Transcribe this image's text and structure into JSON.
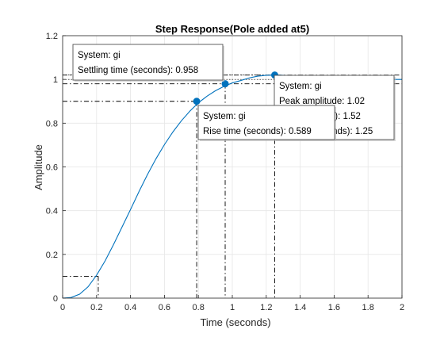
{
  "chart_data": {
    "type": "line",
    "title": "Step Response(Pole added at5)",
    "xlabel": "Time (seconds)",
    "ylabel": "Amplitude",
    "xlim": [
      0,
      2
    ],
    "ylim": [
      0,
      1.2
    ],
    "xticks": [
      "0",
      "0.2",
      "0.4",
      "0.6",
      "0.8",
      "1",
      "1.2",
      "1.4",
      "1.6",
      "1.8",
      "2"
    ],
    "yticks": [
      "0",
      "0.2",
      "0.4",
      "0.6",
      "0.8",
      "1",
      "1.2"
    ],
    "grid": true,
    "series": [
      {
        "color": "#0072BD",
        "x": [
          0,
          0.05,
          0.1,
          0.15,
          0.2,
          0.25,
          0.3,
          0.35,
          0.4,
          0.45,
          0.5,
          0.55,
          0.6,
          0.65,
          0.7,
          0.75,
          0.8,
          0.85,
          0.9,
          0.95,
          1.0,
          1.05,
          1.1,
          1.15,
          1.2,
          1.25,
          1.3,
          1.35,
          1.4,
          1.45,
          1.5,
          1.55,
          1.6,
          1.65,
          1.7,
          1.75,
          1.8,
          1.85,
          1.9,
          1.95,
          2.0
        ],
        "y": [
          0,
          0.003,
          0.018,
          0.052,
          0.105,
          0.17,
          0.245,
          0.325,
          0.405,
          0.487,
          0.565,
          0.637,
          0.702,
          0.76,
          0.811,
          0.855,
          0.893,
          0.923,
          0.948,
          0.968,
          0.984,
          0.995,
          1.007,
          1.015,
          1.019,
          1.02,
          1.019,
          1.016,
          1.013,
          1.01,
          1.008,
          1.006,
          1.004,
          1.003,
          1.002,
          1.001,
          1.001,
          1.0,
          1.0,
          1.0,
          1.0
        ]
      }
    ],
    "markers": [
      {
        "x": 0.79,
        "y": 0.9
      },
      {
        "x": 0.958,
        "y": 0.98
      },
      {
        "x": 1.25,
        "y": 1.02
      }
    ],
    "reference_lines": {
      "settling_band_y": [
        0.98,
        1.02
      ],
      "rise_levels_y": [
        0.1,
        0.9
      ],
      "rise_start_x": 0.21,
      "rise_end_x": 0.79,
      "settling_x": 0.958,
      "peak_x": 1.25,
      "final_value_y": 1.0
    },
    "annotations": {
      "settling": [
        "System: gi",
        "Settling time (seconds): 0.958"
      ],
      "rise": [
        "System: gi",
        "Rise time (seconds): 0.589"
      ],
      "peak": [
        "System: gi",
        "Peak amplitude: 1.02",
        "Overshoot (%): 1.52",
        "At time (seconds): 1.25"
      ]
    }
  }
}
